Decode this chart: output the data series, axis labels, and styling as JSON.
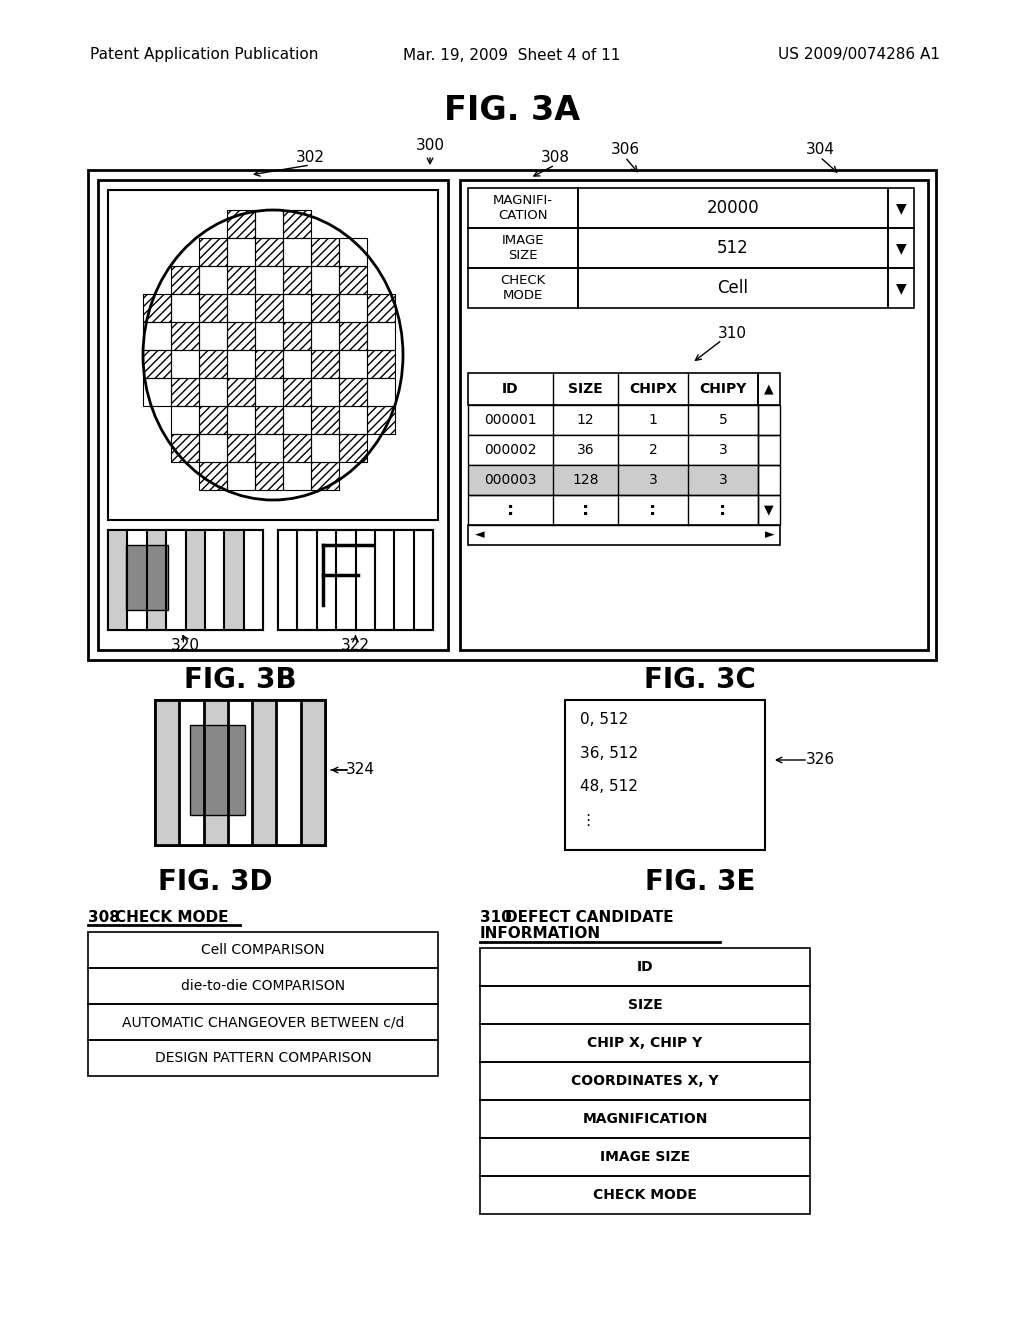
{
  "bg_color": "#ffffff",
  "header_left": "Patent Application Publication",
  "header_center": "Mar. 19, 2009  Sheet 4 of 11",
  "header_right": "US 2009/0074286 A1",
  "fig3a_title": "FIG. 3A",
  "fig3b_title": "FIG. 3B",
  "fig3c_title": "FIG. 3C",
  "fig3d_title": "FIG. 3D",
  "fig3e_title": "FIG. 3E",
  "label_300": "300",
  "label_302": "302",
  "label_304": "304",
  "label_306": "306",
  "label_308": "308",
  "label_310": "310",
  "label_320": "320",
  "label_322": "322",
  "label_324": "324",
  "label_326": "326",
  "fig3d_subtitle_num": "308",
  "fig3d_subtitle_txt": "CHECK MODE",
  "fig3e_subtitle_num": "310",
  "fig3e_subtitle_line1": "DEFECT CANDIDATE",
  "fig3e_subtitle_line2": "INFORMATION",
  "fig3d_rows": [
    "Cell COMPARISON",
    "die-to-die COMPARISON",
    "AUTOMATIC CHANGEOVER BETWEEN c/d",
    "DESIGN PATTERN COMPARISON"
  ],
  "fig3e_rows": [
    "ID",
    "SIZE",
    "CHIP X, CHIP Y",
    "COORDINATES X, Y",
    "MAGNIFICATION",
    "IMAGE SIZE",
    "CHECK MODE"
  ],
  "fig3c_lines": [
    "0, 512",
    "36, 512",
    "48, 512",
    "⋮"
  ],
  "table_headers": [
    "ID",
    "SIZE",
    "CHIPX",
    "CHIPY"
  ],
  "table_rows": [
    [
      "000001",
      "12",
      "1",
      "5"
    ],
    [
      "000002",
      "36",
      "2",
      "3"
    ],
    [
      "000003",
      "128",
      "3",
      "3"
    ]
  ],
  "magnification_label": "MAGNIFI-\nCATION",
  "magnification_value": "20000",
  "image_size_label": "IMAGE\nSIZE",
  "image_size_value": "512",
  "check_mode_label": "CHECK\nMODE",
  "check_mode_value": "Cell"
}
